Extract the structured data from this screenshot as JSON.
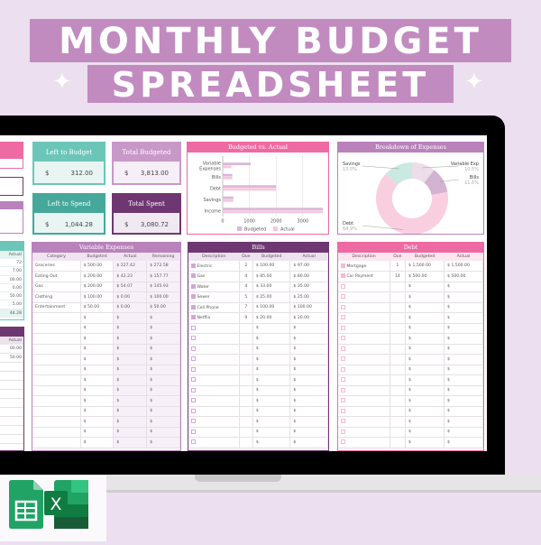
{
  "title": {
    "line1": "MONTHLY BUDGET",
    "line2": "SPREADSHEET"
  },
  "colors": {
    "background": "#ecdfef",
    "title_band": "#c18bc0",
    "teal": "#6cc6b8",
    "teal_dark": "#45a89a",
    "mauve": "#b982bb",
    "plum": "#6f3772",
    "pink": "#ee6aa2"
  },
  "summary": {
    "left_to_budget": {
      "label": "Left to Budget",
      "currency": "$",
      "value": "312.00"
    },
    "total_budgeted": {
      "label": "Total Budgeted",
      "currency": "$",
      "value": "3,813.00"
    },
    "left_to_spend": {
      "label": "Left to Spend",
      "currency": "$",
      "value": "1,044.28"
    },
    "total_spent": {
      "label": "Total Spent",
      "currency": "$",
      "value": "3,080.72"
    }
  },
  "left_partial": {
    "teal_table": {
      "header": "Actual",
      "values": [
        "72",
        "7.00",
        "00.00",
        "0.00",
        "50.00",
        "5.00"
      ],
      "total": "44.28"
    },
    "plum_table": {
      "header": "Actual",
      "values": [
        "00.00",
        "50.00"
      ]
    }
  },
  "chart_data": [
    {
      "type": "bar",
      "title": "Budgeted vs. Actual",
      "orientation": "horizontal",
      "categories": [
        "Variable Expenses",
        "Bills",
        "Debt",
        "Savings",
        "Income"
      ],
      "series": [
        {
          "name": "Budgeted",
          "color": "#d9b8d9",
          "values": [
            1050,
            363,
            2000,
            400,
            3750
          ]
        },
        {
          "name": "Actual",
          "color": "#f9c6dc",
          "values": [
            323.72,
            357,
            2000,
            400,
            3750
          ]
        }
      ],
      "xticks": [
        "0",
        "1000",
        "2000",
        "3000"
      ],
      "xlim": [
        0,
        3750
      ],
      "grid": true,
      "legend": "bottom"
    },
    {
      "type": "pie",
      "title": "Breakdown of Expenses",
      "donut": true,
      "slices": [
        {
          "label": "Variable Exp",
          "pct": "10.5%",
          "value": 10.5,
          "color": "#ecdde9"
        },
        {
          "label": "Bills",
          "pct": "11.6%",
          "value": 11.6,
          "color": "#d3b3d0"
        },
        {
          "label": "Debt",
          "pct": "64.9%",
          "value": 64.9,
          "color": "#f9cfe0"
        },
        {
          "label": "Savings",
          "pct": "13.0%",
          "value": 13.0,
          "color": "#c9e9e1"
        }
      ]
    }
  ],
  "variable_expenses": {
    "title": "Variable Expenses",
    "columns": [
      "Category",
      "Budgeted",
      "Actual",
      "Remaining"
    ],
    "rows": [
      [
        "Groceries",
        "500.00",
        "227.42",
        "272.58"
      ],
      [
        "Eating Out",
        "200.00",
        "42.23",
        "157.77"
      ],
      [
        "Gas",
        "200.00",
        "54.07",
        "145.93"
      ],
      [
        "Clothing",
        "100.00",
        "0.00",
        "100.00"
      ],
      [
        "Entertainment",
        "50.00",
        "0.00",
        "50.00"
      ]
    ],
    "empty_rows": 13,
    "currency": "$"
  },
  "bills": {
    "title": "Bills",
    "columns": [
      "Description",
      "Due",
      "Budgeted",
      "Actual"
    ],
    "rows": [
      [
        "Electric",
        "2",
        "100.00",
        "97.00"
      ],
      [
        "Gas",
        "4",
        "85.00",
        "80.00"
      ],
      [
        "Water",
        "4",
        "33.00",
        "35.00"
      ],
      [
        "Sewer",
        "5",
        "25.00",
        "25.00"
      ],
      [
        "Cell Phone",
        "7",
        "100.00",
        "100.00"
      ],
      [
        "Netflix",
        "9",
        "20.00",
        "20.00"
      ]
    ],
    "empty_rows": 12,
    "currency": "$"
  },
  "debt": {
    "title": "Debt",
    "columns": [
      "Description",
      "Due",
      "Budgeted",
      "Actual"
    ],
    "rows": [
      [
        "Mortgage",
        "1",
        "1,500.00",
        "1,500.00"
      ],
      [
        "Car Payment",
        "14",
        "500.00",
        "500.00"
      ]
    ],
    "empty_rows": 16,
    "currency": "$"
  },
  "app_icons": [
    "google-sheets-icon",
    "excel-icon"
  ]
}
